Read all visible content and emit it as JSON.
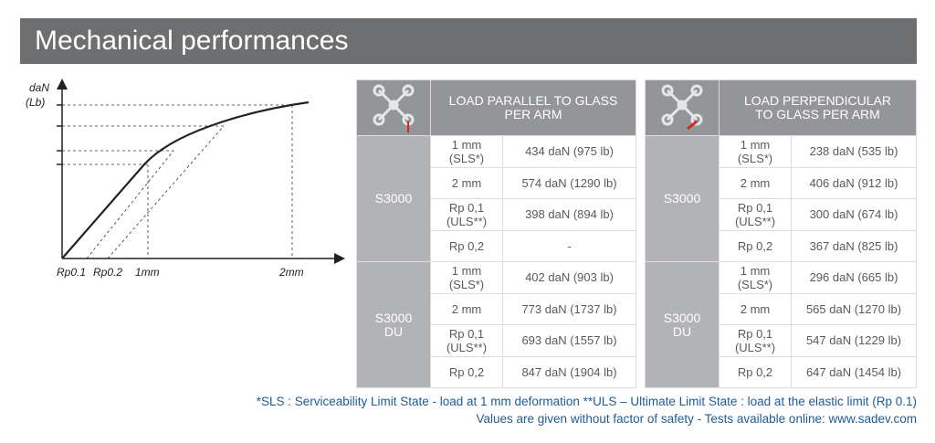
{
  "header": {
    "title": "Mechanical performances"
  },
  "diagram": {
    "y_label": "daN",
    "y_unit": "(Lb)",
    "x_labels": [
      "Rp0.1",
      "Rp0.2",
      "1mm",
      "2mm"
    ]
  },
  "tables": [
    {
      "heading": "LOAD PARALLEL TO GLASS\nPER ARM",
      "groups": [
        {
          "name": "S3000",
          "rows": [
            {
              "mode": "1 mm\n(SLS*)",
              "value": "434 daN (975 lb)"
            },
            {
              "mode": "2 mm",
              "value": "574 daN (1290 lb)"
            },
            {
              "mode": "Rp 0,1\n(ULS**)",
              "value": "398 daN (894 lb)"
            },
            {
              "mode": "Rp 0,2",
              "value": "-"
            }
          ]
        },
        {
          "name": "S3000\nDU",
          "rows": [
            {
              "mode": "1 mm\n(SLS*)",
              "value": "402 daN (903 lb)"
            },
            {
              "mode": "2 mm",
              "value": "773 daN (1737 lb)"
            },
            {
              "mode": "Rp 0,1\n(ULS**)",
              "value": "693 daN (1557 lb)"
            },
            {
              "mode": "Rp 0,2",
              "value": "847 daN (1904 lb)"
            }
          ]
        }
      ]
    },
    {
      "heading": "LOAD PERPENDICULAR\nTO GLASS PER ARM",
      "groups": [
        {
          "name": "S3000",
          "rows": [
            {
              "mode": "1 mm\n(SLS*)",
              "value": "238 daN (535 lb)"
            },
            {
              "mode": "2 mm",
              "value": "406 daN (912 lb)"
            },
            {
              "mode": "Rp 0,1\n(ULS**)",
              "value": "300 daN (674 lb)"
            },
            {
              "mode": "Rp 0,2",
              "value": "367 daN (825 lb)"
            }
          ]
        },
        {
          "name": "S3000\nDU",
          "rows": [
            {
              "mode": "1 mm\n(SLS*)",
              "value": "296 daN (665 lb)"
            },
            {
              "mode": "2 mm",
              "value": "565 daN (1270 lb)"
            },
            {
              "mode": "Rp 0,1\n(ULS**)",
              "value": "547 daN (1229 lb)"
            },
            {
              "mode": "Rp 0,2",
              "value": "647 daN (1454 lb)"
            }
          ]
        }
      ]
    }
  ],
  "footer": [
    "*SLS : Serviceability Limit State - load at 1 mm deformation  **ULS – Ultimate Limit State : load at the elastic limit (Rp 0.1)",
    "Values are given without factor of safety - Tests available online: www.sadev.com"
  ]
}
